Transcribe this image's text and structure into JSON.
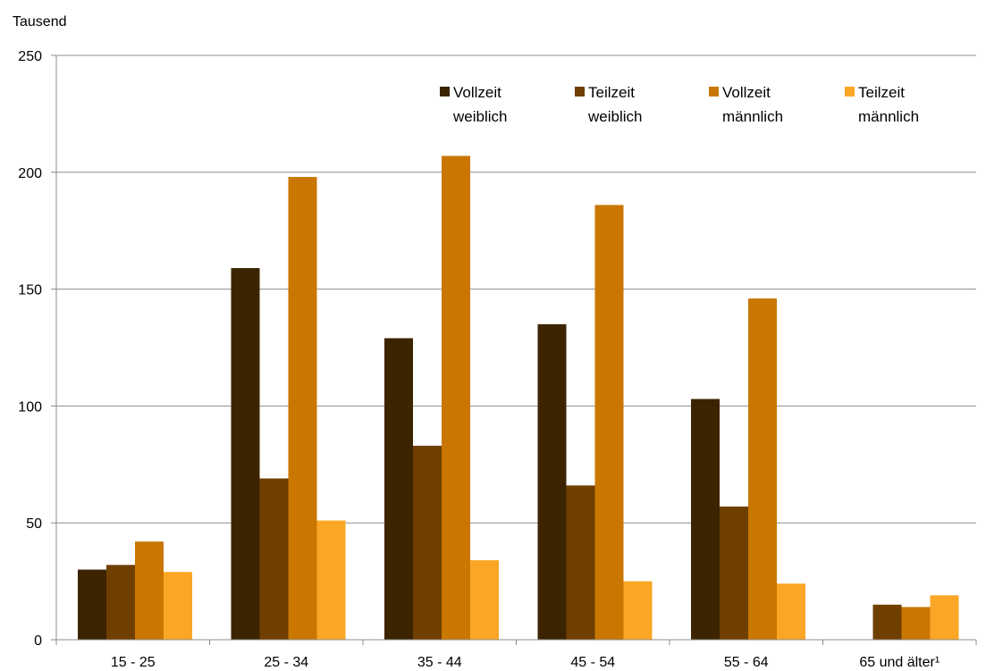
{
  "chart_data": {
    "type": "bar",
    "unit_label": "Tausend",
    "categories": [
      "15 - 25",
      "25 - 34",
      "35 - 44",
      "45 - 54",
      "55 - 64",
      "65 und älter¹"
    ],
    "series": [
      {
        "name": "Vollzeit weiblich",
        "legend_lines": [
          "Vollzeit",
          "weiblich"
        ],
        "color": "#3d2400",
        "values": [
          30,
          159,
          129,
          135,
          103,
          null
        ]
      },
      {
        "name": "Teilzeit weiblich",
        "legend_lines": [
          "Teilzeit",
          "weiblich"
        ],
        "color": "#6f3f00",
        "values": [
          32,
          69,
          83,
          66,
          57,
          15
        ]
      },
      {
        "name": "Vollzeit männlich",
        "legend_lines": [
          "Vollzeit",
          "männlich"
        ],
        "color": "#c97700",
        "values": [
          42,
          198,
          207,
          186,
          146,
          14
        ]
      },
      {
        "name": "Teilzeit männlich",
        "legend_lines": [
          "Teilzeit",
          "männlich"
        ],
        "color": "#fba625",
        "values": [
          29,
          51,
          34,
          25,
          24,
          19
        ]
      }
    ],
    "ylim": [
      0,
      250
    ],
    "yticks": [
      0,
      50,
      100,
      150,
      200,
      250
    ],
    "grid": true,
    "legend_position": "top-right"
  }
}
